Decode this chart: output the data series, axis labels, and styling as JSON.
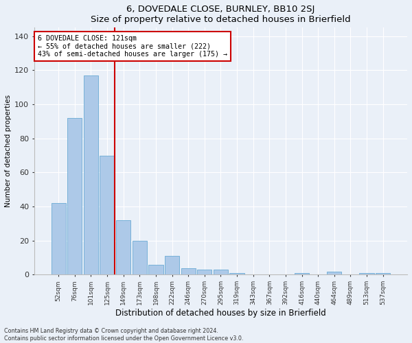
{
  "title": "6, DOVEDALE CLOSE, BURNLEY, BB10 2SJ",
  "subtitle": "Size of property relative to detached houses in Brierfield",
  "xlabel": "Distribution of detached houses by size in Brierfield",
  "ylabel": "Number of detached properties",
  "footnote1": "Contains HM Land Registry data © Crown copyright and database right 2024.",
  "footnote2": "Contains public sector information licensed under the Open Government Licence v3.0.",
  "categories": [
    "52sqm",
    "76sqm",
    "101sqm",
    "125sqm",
    "149sqm",
    "173sqm",
    "198sqm",
    "222sqm",
    "246sqm",
    "270sqm",
    "295sqm",
    "319sqm",
    "343sqm",
    "367sqm",
    "392sqm",
    "416sqm",
    "440sqm",
    "464sqm",
    "489sqm",
    "513sqm",
    "537sqm"
  ],
  "values": [
    42,
    92,
    117,
    70,
    32,
    20,
    6,
    11,
    4,
    3,
    3,
    1,
    0,
    0,
    0,
    1,
    0,
    2,
    0,
    1,
    1
  ],
  "bar_color": "#adc9e8",
  "bar_edge_color": "#6aaad4",
  "vline_color": "#cc0000",
  "vline_x_index": 3,
  "annotation_title": "6 DOVEDALE CLOSE: 121sqm",
  "annotation_line1": "← 55% of detached houses are smaller (222)",
  "annotation_line2": "43% of semi-detached houses are larger (175) →",
  "annotation_box_color": "#ffffff",
  "annotation_box_edge": "#cc0000",
  "ylim": [
    0,
    145
  ],
  "yticks": [
    0,
    20,
    40,
    60,
    80,
    100,
    120,
    140
  ],
  "bg_color": "#eaf0f8",
  "grid_color": "#ffffff"
}
